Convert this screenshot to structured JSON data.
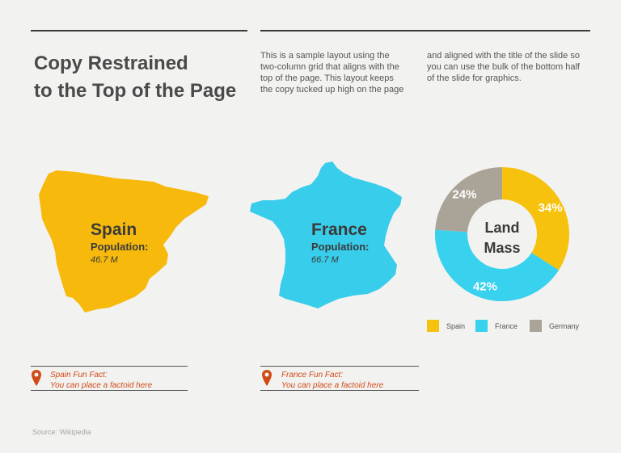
{
  "header": {
    "title_line1": "Copy Restrained",
    "title_line2": "to the Top of the Page",
    "column1": "This is a sample layout using the two-column grid that aligns with the top of the page. This layout keeps the copy tucked up high on the page",
    "column2": "and aligned with the title of the slide so you can use the bulk of the bottom half of the slide for graphics."
  },
  "spain": {
    "name": "Spain",
    "population_label": "Population:",
    "population_value": "46.7 M",
    "fact_title": "Spain Fun Fact:",
    "fact_text": "You can place a factoid here",
    "color": "#f7b90c"
  },
  "france": {
    "name": "France",
    "population_label": "Population:",
    "population_value": "66.7 M",
    "fact_title": "France Fun Fact:",
    "fact_text": "You can place a factoid here",
    "color": "#38cdea"
  },
  "accent_color": "#d04a17",
  "source": "Source: Wikipedia",
  "chart_data": {
    "type": "pie",
    "style": "donut",
    "center_label_line1": "Land",
    "center_label_line2": "Mass",
    "categories": [
      "Spain",
      "France",
      "Germany"
    ],
    "values": [
      34,
      42,
      24
    ],
    "labels": [
      "34%",
      "42%",
      "24%"
    ],
    "colors": [
      "#f7c20e",
      "#38d1ee",
      "#aaa397"
    ],
    "legend_position": "bottom"
  }
}
